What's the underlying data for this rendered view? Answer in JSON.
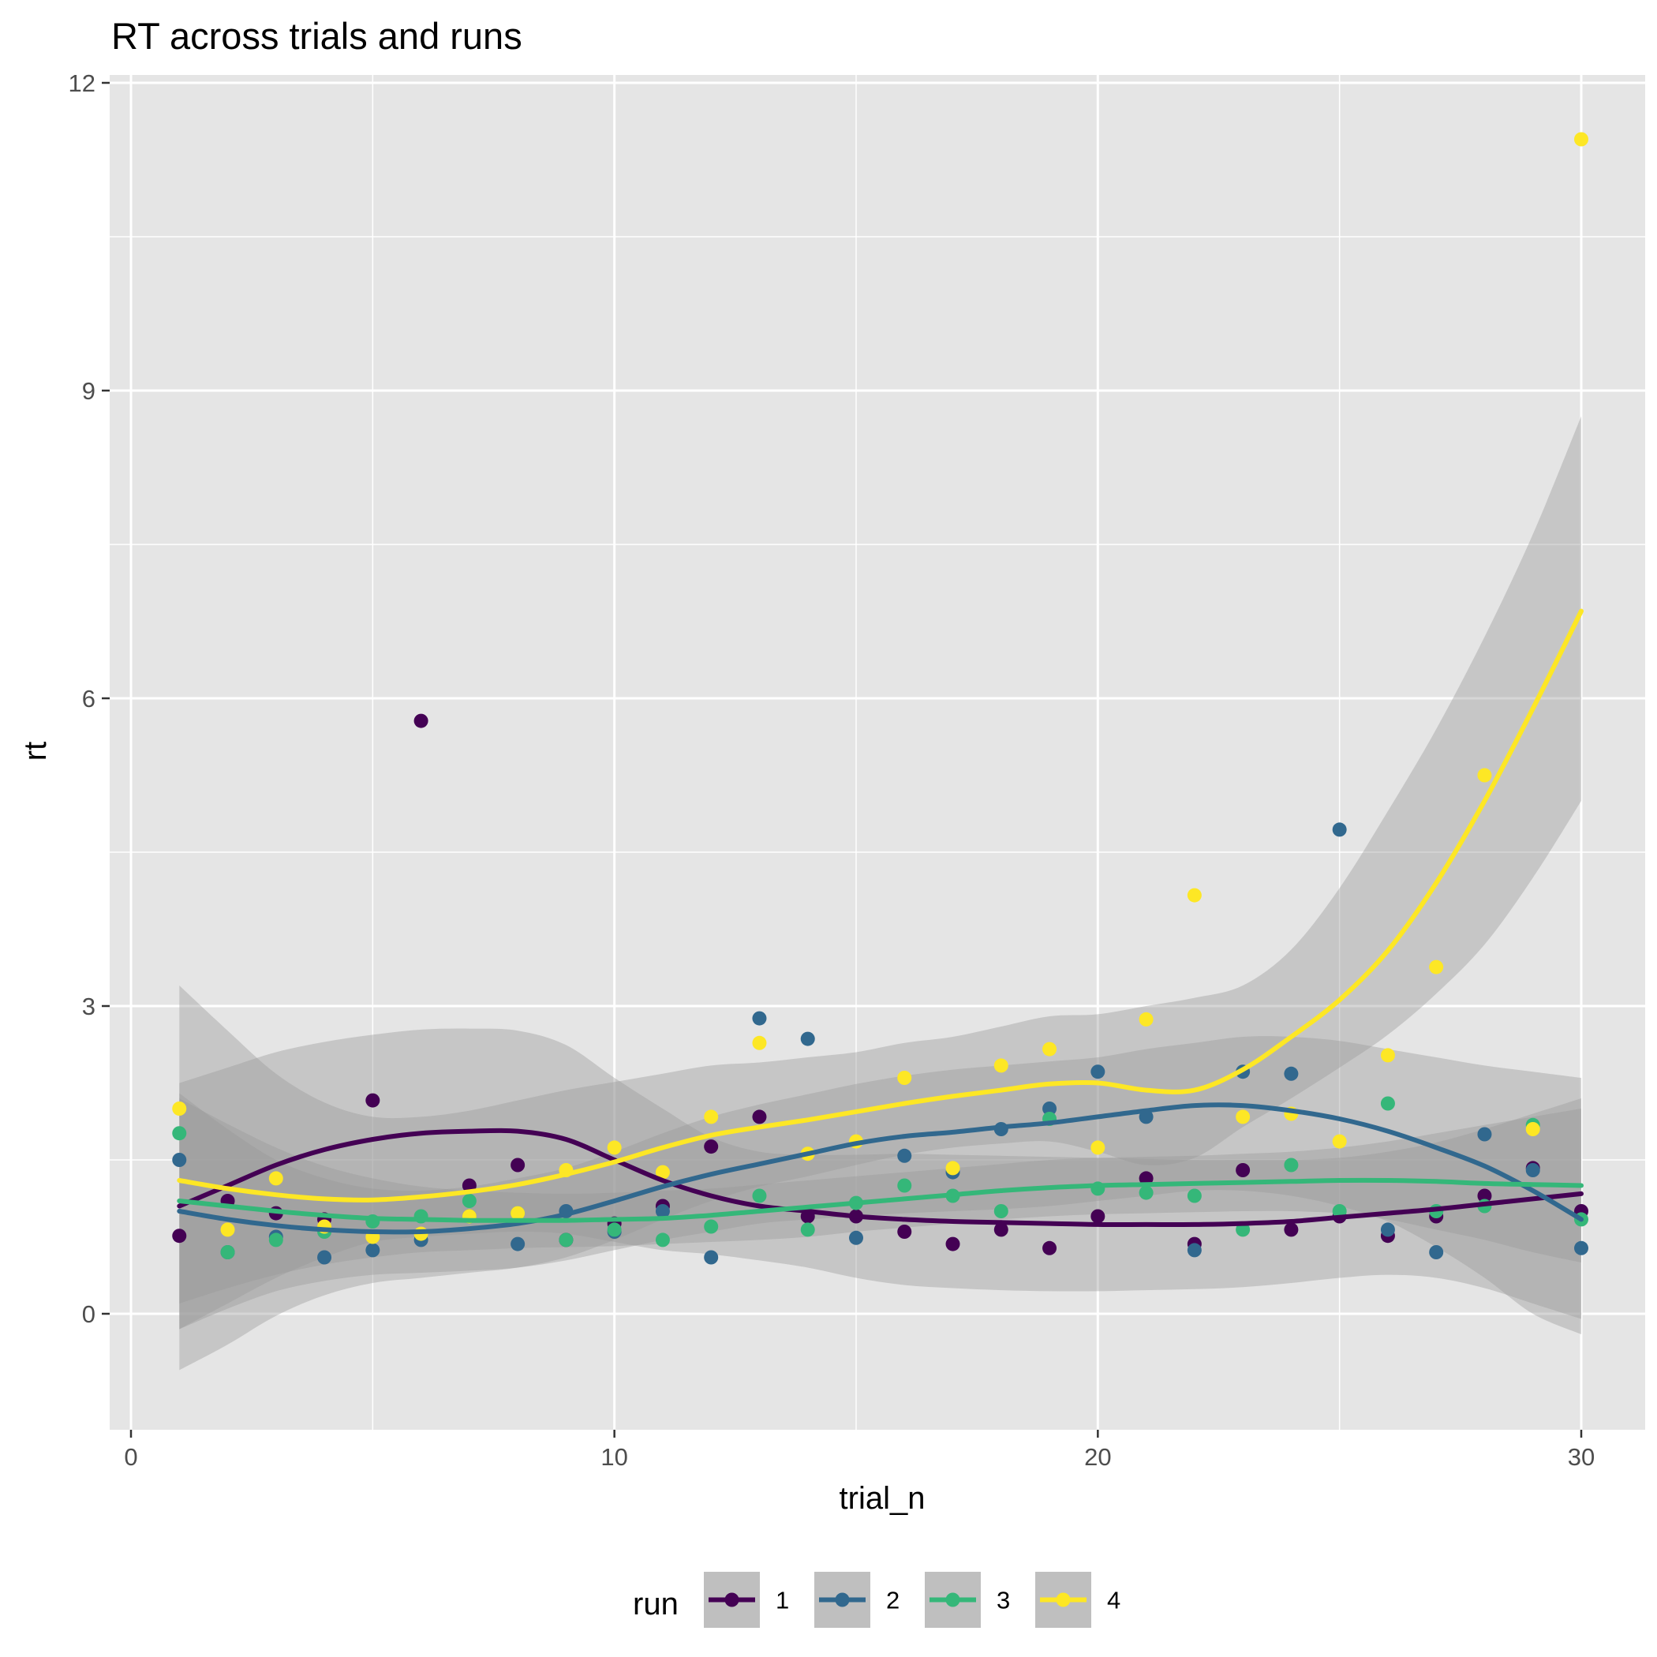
{
  "chart_data": {
    "type": "scatter",
    "title": "RT across trials and runs",
    "xlabel": "trial_n",
    "ylabel": "rt",
    "xlim": [
      0,
      30
    ],
    "ylim": [
      -1.2,
      12
    ],
    "x_ticks": [
      0,
      10,
      20,
      30
    ],
    "y_ticks": [
      0,
      3,
      6,
      9,
      12
    ],
    "grid": true,
    "background": "#E5E5E5",
    "smoother": "loess with shaded 95% confidence band",
    "legend": {
      "title": "run",
      "position": "bottom"
    },
    "series": [
      {
        "name": "1",
        "color": "#440154",
        "points": [
          [
            1,
            0.76
          ],
          [
            2,
            1.1
          ],
          [
            3,
            0.98
          ],
          [
            4,
            0.92
          ],
          [
            5,
            2.08
          ],
          [
            6,
            5.78
          ],
          [
            7,
            1.25
          ],
          [
            8,
            1.45
          ],
          [
            9,
            0.72
          ],
          [
            10,
            0.88
          ],
          [
            11,
            1.05
          ],
          [
            12,
            1.63
          ],
          [
            13,
            1.92
          ],
          [
            14,
            0.95
          ],
          [
            15,
            0.95
          ],
          [
            16,
            0.8
          ],
          [
            17,
            0.68
          ],
          [
            18,
            0.82
          ],
          [
            19,
            0.64
          ],
          [
            20,
            0.95
          ],
          [
            21,
            1.32
          ],
          [
            22,
            0.68
          ],
          [
            23,
            1.4
          ],
          [
            24,
            0.82
          ],
          [
            25,
            0.95
          ],
          [
            26,
            0.76
          ],
          [
            27,
            0.95
          ],
          [
            28,
            1.15
          ],
          [
            29,
            1.42
          ],
          [
            30,
            1.0
          ]
        ],
        "smooth": [
          [
            1,
            1.05
          ],
          [
            2,
            1.25
          ],
          [
            3,
            1.45
          ],
          [
            4,
            1.6
          ],
          [
            5,
            1.7
          ],
          [
            6,
            1.76
          ],
          [
            7,
            1.78
          ],
          [
            8,
            1.78
          ],
          [
            9,
            1.7
          ],
          [
            10,
            1.5
          ],
          [
            11,
            1.3
          ],
          [
            12,
            1.15
          ],
          [
            13,
            1.05
          ],
          [
            14,
            1.0
          ],
          [
            15,
            0.95
          ],
          [
            16,
            0.92
          ],
          [
            17,
            0.9
          ],
          [
            18,
            0.89
          ],
          [
            19,
            0.88
          ],
          [
            20,
            0.87
          ],
          [
            21,
            0.87
          ],
          [
            22,
            0.87
          ],
          [
            23,
            0.88
          ],
          [
            24,
            0.9
          ],
          [
            25,
            0.94
          ],
          [
            26,
            0.98
          ],
          [
            27,
            1.02
          ],
          [
            28,
            1.07
          ],
          [
            29,
            1.12
          ],
          [
            30,
            1.17
          ]
        ],
        "band_lower": [
          -0.15,
          0.1,
          0.35,
          0.55,
          0.7,
          0.75,
          0.78,
          0.8,
          0.78,
          0.7,
          0.62,
          0.58,
          0.52,
          0.45,
          0.35,
          0.28,
          0.25,
          0.23,
          0.22,
          0.22,
          0.23,
          0.24,
          0.26,
          0.3,
          0.35,
          0.38,
          0.35,
          0.25,
          0.1,
          -0.05
        ],
        "band_upper": [
          2.25,
          2.4,
          2.55,
          2.65,
          2.72,
          2.77,
          2.78,
          2.76,
          2.62,
          2.3,
          2.0,
          1.72,
          1.58,
          1.55,
          1.55,
          1.56,
          1.55,
          1.54,
          1.53,
          1.52,
          1.51,
          1.5,
          1.5,
          1.5,
          1.52,
          1.58,
          1.67,
          1.8,
          1.95,
          2.1
        ]
      },
      {
        "name": "2",
        "color": "#31688E",
        "points": [
          [
            1,
            1.5
          ],
          [
            2,
            0.6
          ],
          [
            3,
            0.75
          ],
          [
            4,
            0.55
          ],
          [
            5,
            0.62
          ],
          [
            6,
            0.72
          ],
          [
            7,
            0.95
          ],
          [
            8,
            0.68
          ],
          [
            9,
            1.0
          ],
          [
            10,
            0.8
          ],
          [
            11,
            1.0
          ],
          [
            12,
            0.55
          ],
          [
            13,
            2.88
          ],
          [
            14,
            2.68
          ],
          [
            15,
            0.74
          ],
          [
            16,
            1.54
          ],
          [
            17,
            1.38
          ],
          [
            18,
            1.8
          ],
          [
            19,
            2.0
          ],
          [
            20,
            2.36
          ],
          [
            21,
            1.92
          ],
          [
            22,
            0.62
          ],
          [
            23,
            2.36
          ],
          [
            24,
            2.34
          ],
          [
            25,
            4.72
          ],
          [
            26,
            0.82
          ],
          [
            27,
            0.6
          ],
          [
            28,
            1.75
          ],
          [
            29,
            1.4
          ],
          [
            30,
            0.64
          ]
        ],
        "smooth": [
          [
            1,
            1.0
          ],
          [
            2,
            0.92
          ],
          [
            3,
            0.86
          ],
          [
            4,
            0.82
          ],
          [
            5,
            0.8
          ],
          [
            6,
            0.8
          ],
          [
            7,
            0.83
          ],
          [
            8,
            0.88
          ],
          [
            9,
            0.97
          ],
          [
            10,
            1.1
          ],
          [
            11,
            1.24
          ],
          [
            12,
            1.36
          ],
          [
            13,
            1.46
          ],
          [
            14,
            1.56
          ],
          [
            15,
            1.66
          ],
          [
            16,
            1.73
          ],
          [
            17,
            1.77
          ],
          [
            18,
            1.82
          ],
          [
            19,
            1.86
          ],
          [
            20,
            1.92
          ],
          [
            21,
            1.98
          ],
          [
            22,
            2.03
          ],
          [
            23,
            2.03
          ],
          [
            24,
            1.98
          ],
          [
            25,
            1.9
          ],
          [
            26,
            1.78
          ],
          [
            27,
            1.62
          ],
          [
            28,
            1.44
          ],
          [
            29,
            1.2
          ],
          [
            30,
            0.92
          ]
        ],
        "band_lower": [
          -0.15,
          0.05,
          0.22,
          0.32,
          0.38,
          0.4,
          0.42,
          0.45,
          0.52,
          0.62,
          0.72,
          0.8,
          0.88,
          0.92,
          0.95,
          0.98,
          1.0,
          1.02,
          1.05,
          1.1,
          1.15,
          1.2,
          1.2,
          1.15,
          1.05,
          0.9,
          0.65,
          0.35,
          0.0,
          -0.2
        ],
        "band_upper": [
          2.15,
          1.8,
          1.5,
          1.32,
          1.22,
          1.2,
          1.24,
          1.32,
          1.42,
          1.58,
          1.76,
          1.92,
          2.04,
          2.14,
          2.24,
          2.32,
          2.38,
          2.42,
          2.46,
          2.5,
          2.58,
          2.64,
          2.7,
          2.7,
          2.66,
          2.58,
          2.5,
          2.42,
          2.36,
          2.3
        ]
      },
      {
        "name": "3",
        "color": "#35B779",
        "points": [
          [
            1,
            1.76
          ],
          [
            2,
            0.6
          ],
          [
            3,
            0.72
          ],
          [
            4,
            0.8
          ],
          [
            5,
            0.9
          ],
          [
            6,
            0.95
          ],
          [
            7,
            1.1
          ],
          [
            8,
            0.98
          ],
          [
            9,
            0.72
          ],
          [
            10,
            0.82
          ],
          [
            11,
            0.72
          ],
          [
            12,
            0.85
          ],
          [
            13,
            1.15
          ],
          [
            14,
            0.82
          ],
          [
            15,
            1.08
          ],
          [
            16,
            1.25
          ],
          [
            17,
            1.15
          ],
          [
            18,
            1.0
          ],
          [
            19,
            1.9
          ],
          [
            20,
            1.22
          ],
          [
            21,
            1.18
          ],
          [
            22,
            1.15
          ],
          [
            23,
            0.82
          ],
          [
            24,
            1.45
          ],
          [
            25,
            1.0
          ],
          [
            26,
            2.05
          ],
          [
            27,
            1.0
          ],
          [
            28,
            1.05
          ],
          [
            29,
            1.84
          ],
          [
            30,
            0.92
          ]
        ],
        "smooth": [
          [
            1,
            1.1
          ],
          [
            2,
            1.05
          ],
          [
            3,
            1.0
          ],
          [
            4,
            0.96
          ],
          [
            5,
            0.93
          ],
          [
            6,
            0.92
          ],
          [
            7,
            0.91
          ],
          [
            8,
            0.91
          ],
          [
            9,
            0.91
          ],
          [
            10,
            0.92
          ],
          [
            11,
            0.93
          ],
          [
            12,
            0.96
          ],
          [
            13,
            1.0
          ],
          [
            14,
            1.04
          ],
          [
            15,
            1.08
          ],
          [
            16,
            1.12
          ],
          [
            17,
            1.16
          ],
          [
            18,
            1.2
          ],
          [
            19,
            1.23
          ],
          [
            20,
            1.25
          ],
          [
            21,
            1.26
          ],
          [
            22,
            1.27
          ],
          [
            23,
            1.28
          ],
          [
            24,
            1.29
          ],
          [
            25,
            1.3
          ],
          [
            26,
            1.3
          ],
          [
            27,
            1.29
          ],
          [
            28,
            1.27
          ],
          [
            29,
            1.26
          ],
          [
            30,
            1.25
          ]
        ],
        "band_lower": [
          0.1,
          0.25,
          0.38,
          0.48,
          0.55,
          0.6,
          0.62,
          0.64,
          0.65,
          0.66,
          0.68,
          0.7,
          0.72,
          0.75,
          0.8,
          0.84,
          0.88,
          0.92,
          0.95,
          0.97,
          0.98,
          0.99,
          1.0,
          1.0,
          0.98,
          0.92,
          0.82,
          0.72,
          0.6,
          0.5
        ],
        "band_upper": [
          2.1,
          1.85,
          1.62,
          1.44,
          1.32,
          1.24,
          1.2,
          1.18,
          1.17,
          1.18,
          1.2,
          1.22,
          1.26,
          1.3,
          1.34,
          1.38,
          1.42,
          1.46,
          1.5,
          1.52,
          1.53,
          1.54,
          1.56,
          1.58,
          1.62,
          1.68,
          1.76,
          1.84,
          1.92,
          2.0
        ]
      },
      {
        "name": "4",
        "color": "#FDE725",
        "points": [
          [
            1,
            2.0
          ],
          [
            2,
            0.82
          ],
          [
            3,
            1.32
          ],
          [
            4,
            0.85
          ],
          [
            5,
            0.75
          ],
          [
            6,
            0.78
          ],
          [
            7,
            0.95
          ],
          [
            8,
            0.98
          ],
          [
            9,
            1.4
          ],
          [
            10,
            1.62
          ],
          [
            11,
            1.38
          ],
          [
            12,
            1.92
          ],
          [
            13,
            2.64
          ],
          [
            14,
            1.56
          ],
          [
            15,
            1.68
          ],
          [
            16,
            2.3
          ],
          [
            17,
            1.42
          ],
          [
            18,
            2.42
          ],
          [
            19,
            2.58
          ],
          [
            20,
            1.62
          ],
          [
            21,
            2.87
          ],
          [
            22,
            4.08
          ],
          [
            23,
            1.92
          ],
          [
            24,
            1.95
          ],
          [
            25,
            1.68
          ],
          [
            26,
            2.52
          ],
          [
            27,
            3.38
          ],
          [
            28,
            5.25
          ],
          [
            29,
            1.8
          ],
          [
            30,
            11.45
          ]
        ],
        "smooth": [
          [
            1,
            1.3
          ],
          [
            2,
            1.22
          ],
          [
            3,
            1.16
          ],
          [
            4,
            1.12
          ],
          [
            5,
            1.11
          ],
          [
            6,
            1.14
          ],
          [
            7,
            1.19
          ],
          [
            8,
            1.26
          ],
          [
            9,
            1.36
          ],
          [
            10,
            1.48
          ],
          [
            11,
            1.62
          ],
          [
            12,
            1.74
          ],
          [
            13,
            1.82
          ],
          [
            14,
            1.89
          ],
          [
            15,
            1.97
          ],
          [
            16,
            2.05
          ],
          [
            17,
            2.12
          ],
          [
            18,
            2.18
          ],
          [
            19,
            2.24
          ],
          [
            20,
            2.25
          ],
          [
            21,
            2.18
          ],
          [
            22,
            2.18
          ],
          [
            23,
            2.38
          ],
          [
            24,
            2.7
          ],
          [
            25,
            3.06
          ],
          [
            26,
            3.54
          ],
          [
            27,
            4.2
          ],
          [
            28,
            5.0
          ],
          [
            29,
            5.9
          ],
          [
            30,
            6.85
          ]
        ],
        "band_lower": [
          -0.55,
          -0.3,
          -0.02,
          0.18,
          0.3,
          0.35,
          0.4,
          0.45,
          0.55,
          0.72,
          0.92,
          1.1,
          1.24,
          1.34,
          1.45,
          1.55,
          1.62,
          1.66,
          1.68,
          1.58,
          1.45,
          1.52,
          1.82,
          2.1,
          2.4,
          2.72,
          3.12,
          3.6,
          4.25,
          5.0
        ],
        "band_upper": [
          3.2,
          2.76,
          2.34,
          2.06,
          1.92,
          1.92,
          1.98,
          2.08,
          2.18,
          2.26,
          2.34,
          2.42,
          2.45,
          2.5,
          2.55,
          2.64,
          2.7,
          2.8,
          2.9,
          2.92,
          3.0,
          3.08,
          3.2,
          3.55,
          4.15,
          4.9,
          5.7,
          6.6,
          7.6,
          8.75
        ]
      }
    ]
  }
}
